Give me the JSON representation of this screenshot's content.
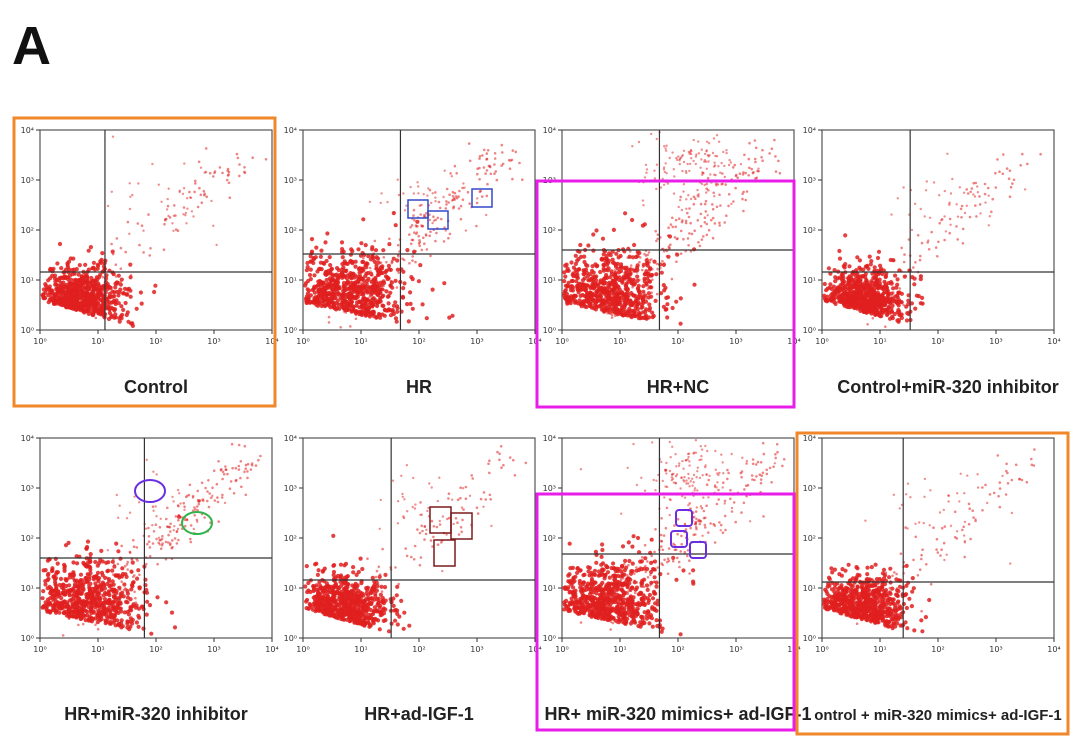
{
  "figure": {
    "panel_label": "A",
    "colors": {
      "dots": "#e02020",
      "orange_box": "#f0872a",
      "magenta_box": "#e81ee8",
      "blue_box": "#3348c8",
      "purple_box": "#6a2ee0",
      "green_ellipse": "#2fb34a",
      "dark_red_box": "#7a1a1a"
    },
    "axis_ticks": [
      "10⁰",
      "10¹",
      "10²",
      "10³",
      "10⁴"
    ],
    "panels": [
      {
        "caption": "Control",
        "highlight": "orange",
        "row": 0,
        "col": 0,
        "gate": [
          0.28,
          0.29
        ],
        "markers": []
      },
      {
        "caption": "HR",
        "highlight": "none",
        "row": 0,
        "col": 1,
        "gate": [
          0.42,
          0.38
        ],
        "markers": [
          "blue-box",
          "blue-box",
          "blue-box"
        ]
      },
      {
        "caption": "HR+NC",
        "highlight": "magenta",
        "row": 0,
        "col": 2,
        "gate": [
          0.42,
          0.4
        ],
        "markers": []
      },
      {
        "caption": "Control+miR-320 inhibitor",
        "highlight": "none",
        "row": 0,
        "col": 3,
        "gate": [
          0.38,
          0.29
        ],
        "markers": []
      },
      {
        "caption": "HR+miR-320 inhibitor",
        "highlight": "none",
        "row": 1,
        "col": 0,
        "gate": [
          0.45,
          0.4
        ],
        "markers": [
          "purple-ellipse",
          "green-ellipse"
        ]
      },
      {
        "caption": "HR+ad-IGF-1",
        "highlight": "none",
        "row": 1,
        "col": 1,
        "gate": [
          0.38,
          0.29
        ],
        "markers": [
          "dark-red-box",
          "dark-red-box",
          "dark-red-box"
        ]
      },
      {
        "caption": "HR+ miR-320 mimics+ ad-IGF-1",
        "highlight": "magenta",
        "row": 1,
        "col": 2,
        "gate": [
          0.42,
          0.42
        ],
        "markers": [
          "purple-box",
          "purple-box",
          "purple-box"
        ]
      },
      {
        "caption": "ontrol + miR-320 mimics+ ad-IGF-1",
        "highlight": "orange",
        "row": 1,
        "col": 3,
        "gate": [
          0.35,
          0.28
        ],
        "markers": []
      }
    ]
  }
}
